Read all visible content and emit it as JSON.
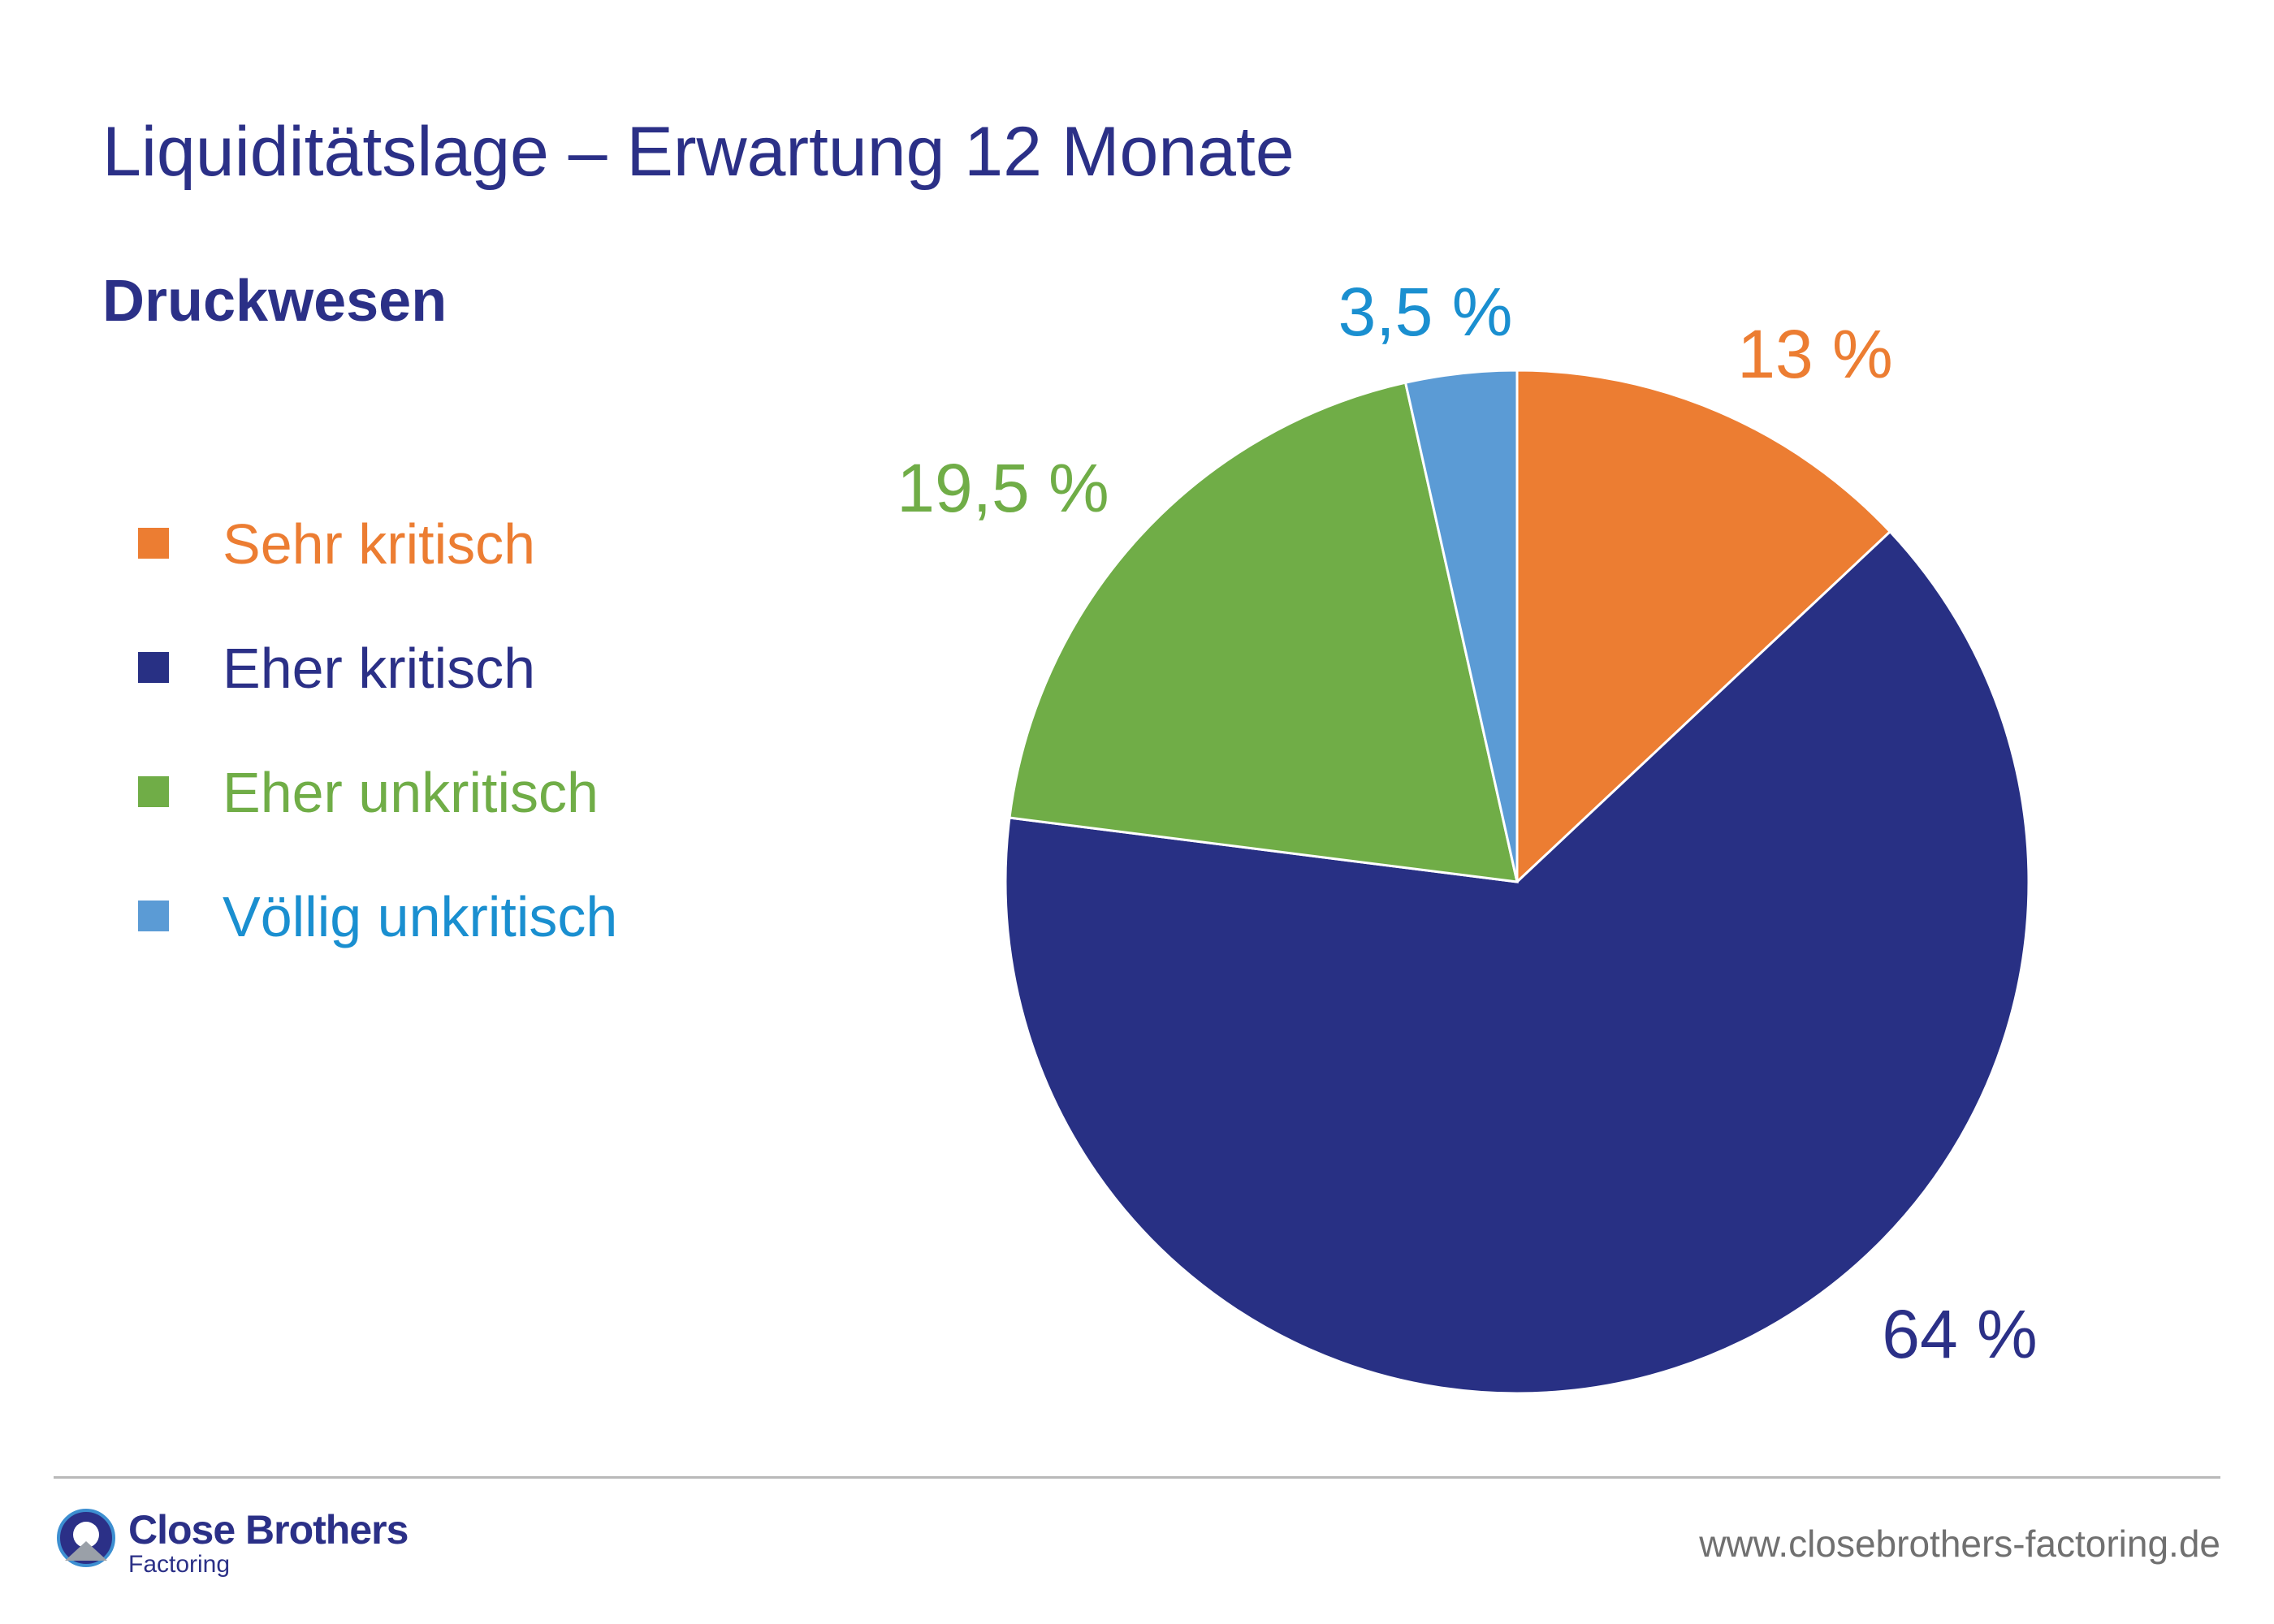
{
  "title": "Liquiditätslage – Erwartung 12 Monate",
  "subtitle": "Druckwesen",
  "chart_data": {
    "type": "pie",
    "start_angle_deg": 0,
    "direction": "clockwise",
    "legend_position": "left",
    "slices": [
      {
        "name": "Sehr kritisch",
        "value": 13,
        "label": "13 %",
        "color": "#ec7d32",
        "text_color": "#ec7d32"
      },
      {
        "name": "Eher kritisch",
        "value": 64,
        "label": "64 %",
        "color": "#283084",
        "text_color": "#2b3087"
      },
      {
        "name": "Eher unkritisch",
        "value": 19.5,
        "label": "19,5 %",
        "color": "#70ad47",
        "text_color": "#70ad47"
      },
      {
        "name": "Völlig unkritisch",
        "value": 3.5,
        "label": "3,5 %",
        "color": "#5b9bd5",
        "text_color": "#1a8fd0"
      }
    ]
  },
  "footer": {
    "logo_name": "Close Brothers",
    "logo_sub": "Factoring",
    "website": "www.closebrothers-factoring.de",
    "logo_icon": "close-brothers-logo-icon"
  }
}
